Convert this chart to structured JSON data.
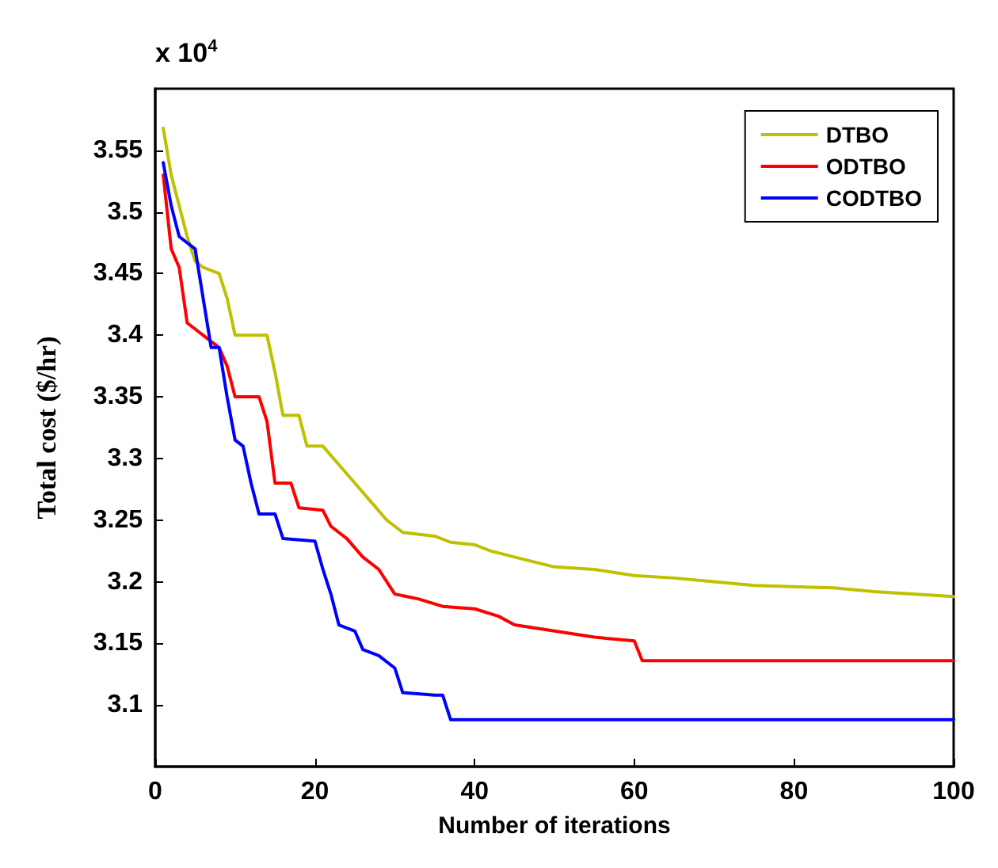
{
  "chart_data": {
    "type": "line",
    "xlabel": "Number of iterations",
    "ylabel": "Total cost ($/hr)",
    "annotations": [
      "x 10$^{4}$"
    ],
    "xlim": [
      0,
      100
    ],
    "xticks": [
      0,
      20,
      40,
      60,
      80,
      100
    ],
    "ylim": [
      3.05,
      3.6
    ],
    "yticks": [
      3.1,
      3.15,
      3.2,
      3.25,
      3.3,
      3.35,
      3.4,
      3.45,
      3.5,
      3.55
    ],
    "grid": false,
    "legend": "top right",
    "marker": "none",
    "line_style": "solid",
    "series": [
      {
        "name": "DTBO",
        "color": "#c0c000",
        "x": [
          1,
          2,
          4,
          5,
          6,
          8,
          9,
          10,
          14,
          15,
          16,
          18,
          19,
          21,
          23,
          25,
          27,
          29,
          31,
          35,
          37,
          40,
          42,
          45,
          50,
          55,
          60,
          65,
          70,
          75,
          85,
          90,
          100
        ],
        "values": [
          3.568,
          3.53,
          3.48,
          3.46,
          3.455,
          3.45,
          3.43,
          3.4,
          3.4,
          3.37,
          3.335,
          3.335,
          3.31,
          3.31,
          3.295,
          3.28,
          3.265,
          3.25,
          3.24,
          3.237,
          3.232,
          3.23,
          3.225,
          3.22,
          3.212,
          3.21,
          3.205,
          3.203,
          3.2,
          3.197,
          3.195,
          3.192,
          3.188
        ]
      },
      {
        "name": "ODTBO",
        "color": "#ff0000",
        "x": [
          1,
          2,
          3,
          4,
          5,
          7,
          8,
          9,
          10,
          13,
          14,
          15,
          17,
          18,
          21,
          22,
          24,
          26,
          28,
          30,
          33,
          36,
          40,
          43,
          45,
          50,
          55,
          60,
          61,
          100
        ],
        "values": [
          3.53,
          3.47,
          3.455,
          3.41,
          3.405,
          3.395,
          3.39,
          3.375,
          3.35,
          3.35,
          3.33,
          3.28,
          3.28,
          3.26,
          3.258,
          3.245,
          3.235,
          3.22,
          3.21,
          3.19,
          3.186,
          3.18,
          3.178,
          3.172,
          3.165,
          3.16,
          3.155,
          3.152,
          3.136,
          3.136
        ]
      },
      {
        "name": "CODTBO",
        "color": "#0000ff",
        "x": [
          1,
          2,
          3,
          5,
          6,
          7,
          8,
          9,
          10,
          11,
          12,
          13,
          15,
          16,
          20,
          21,
          22,
          23,
          25,
          26,
          28,
          30,
          31,
          35,
          36,
          37,
          100
        ],
        "values": [
          3.54,
          3.505,
          3.48,
          3.47,
          3.43,
          3.39,
          3.39,
          3.35,
          3.315,
          3.31,
          3.28,
          3.255,
          3.255,
          3.235,
          3.233,
          3.21,
          3.19,
          3.165,
          3.16,
          3.145,
          3.14,
          3.13,
          3.11,
          3.108,
          3.108,
          3.088,
          3.088
        ]
      }
    ]
  }
}
